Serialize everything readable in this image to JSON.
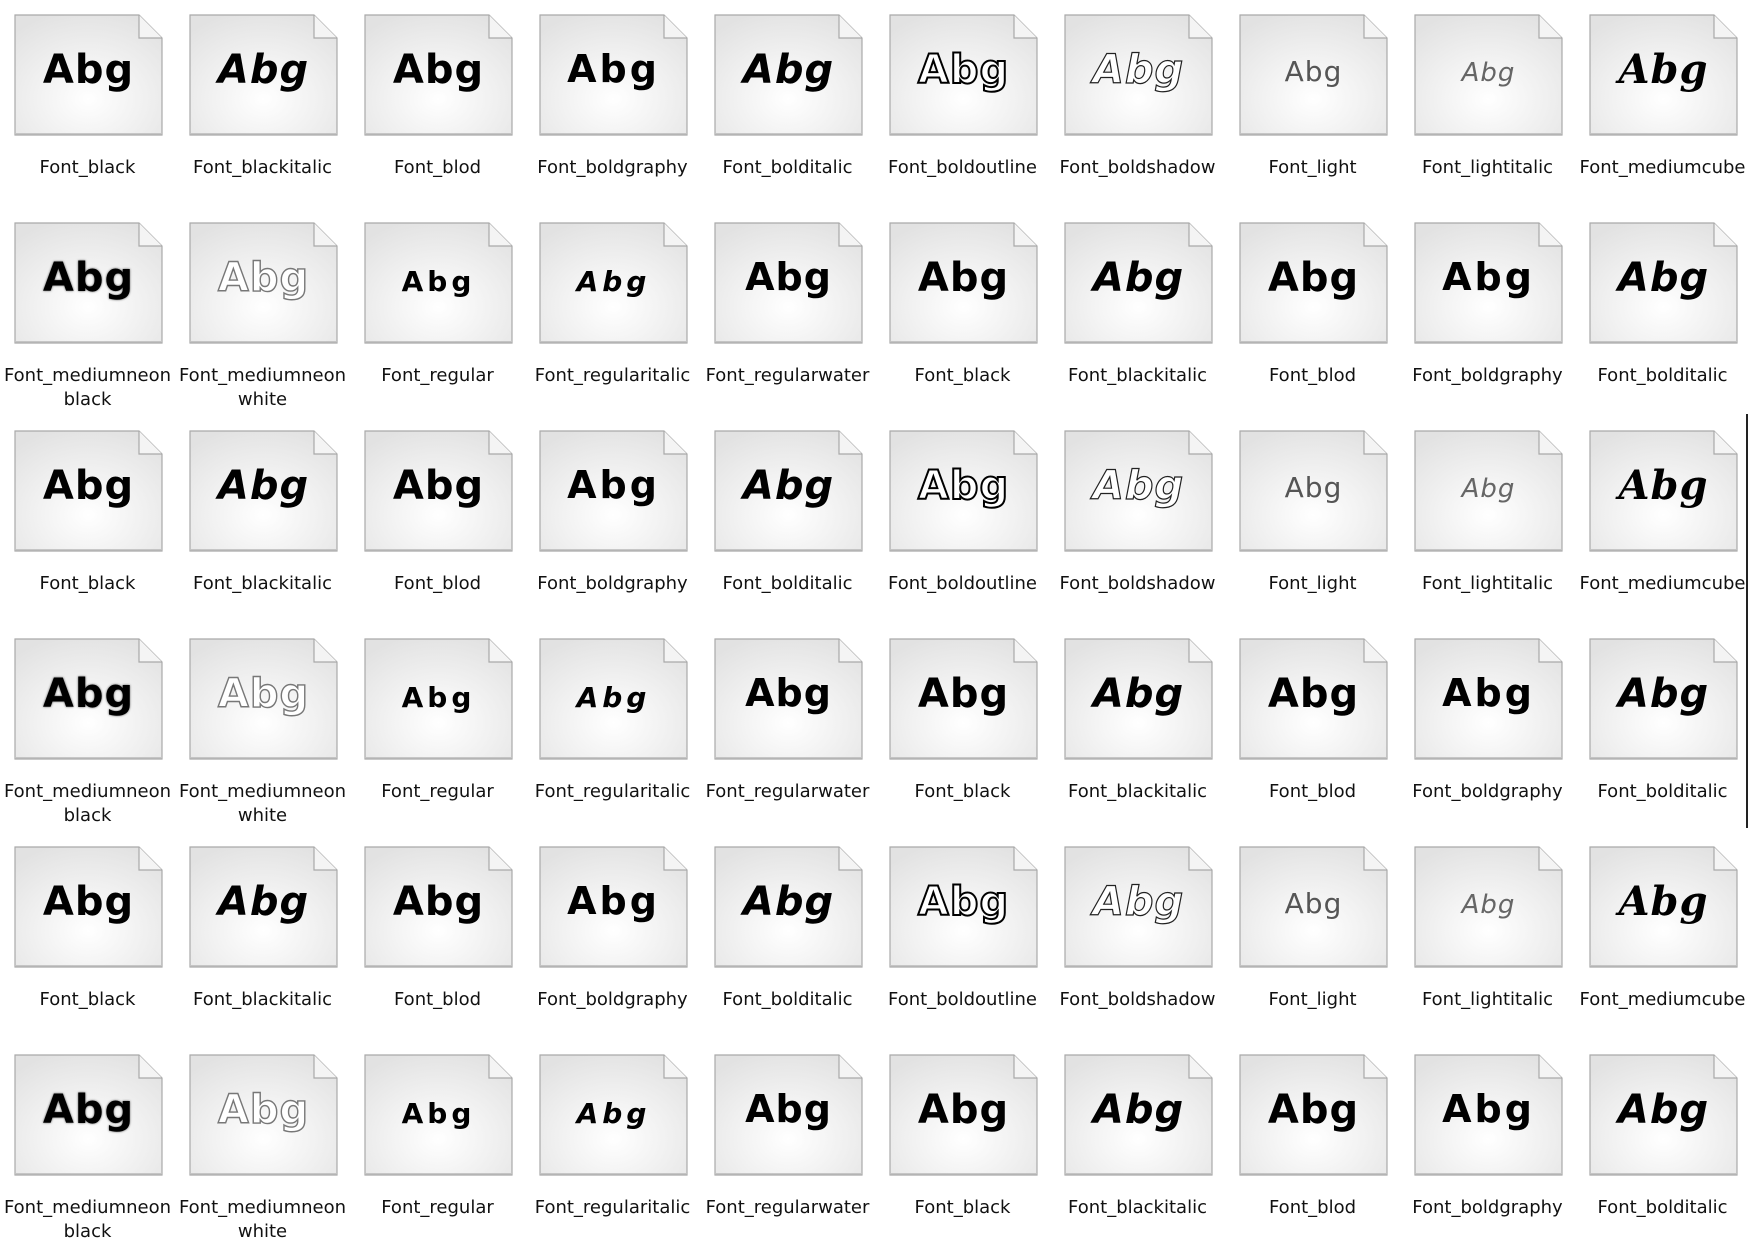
{
  "icon_preview_text": "Abg",
  "files": [
    {
      "label": "Font_black",
      "style": "black"
    },
    {
      "label": "Font_blackitalic",
      "style": "blackitalic"
    },
    {
      "label": "Font_blod",
      "style": "blod"
    },
    {
      "label": "Font_boldgraphy",
      "style": "boldgraphy"
    },
    {
      "label": "Font_bolditalic",
      "style": "bolditalic"
    },
    {
      "label": "Font_boldoutline",
      "style": "boldoutline"
    },
    {
      "label": "Font_boldshadow",
      "style": "boldshadow"
    },
    {
      "label": "Font_light",
      "style": "light"
    },
    {
      "label": "Font_lightitalic",
      "style": "lightitalic"
    },
    {
      "label": "Font_mediumcube",
      "style": "mediumcube"
    },
    {
      "label": "Font_mediumneonblack",
      "style": "mediumneonblack"
    },
    {
      "label": "Font_mediumneonwhite",
      "style": "mediumneonwhite"
    },
    {
      "label": "Font_regular",
      "style": "regular"
    },
    {
      "label": "Font_regularitalic",
      "style": "regularitalic"
    },
    {
      "label": "Font_regularwater",
      "style": "regularwater"
    },
    {
      "label": "Font_black",
      "style": "black"
    },
    {
      "label": "Font_blackitalic",
      "style": "blackitalic"
    },
    {
      "label": "Font_blod",
      "style": "blod"
    },
    {
      "label": "Font_boldgraphy",
      "style": "boldgraphy"
    },
    {
      "label": "Font_bolditalic",
      "style": "bolditalic"
    },
    {
      "label": "Font_black",
      "style": "black"
    },
    {
      "label": "Font_blackitalic",
      "style": "blackitalic"
    },
    {
      "label": "Font_blod",
      "style": "blod"
    },
    {
      "label": "Font_boldgraphy",
      "style": "boldgraphy"
    },
    {
      "label": "Font_bolditalic",
      "style": "bolditalic"
    },
    {
      "label": "Font_boldoutline",
      "style": "boldoutline"
    },
    {
      "label": "Font_boldshadow",
      "style": "boldshadow"
    },
    {
      "label": "Font_light",
      "style": "light"
    },
    {
      "label": "Font_lightitalic",
      "style": "lightitalic"
    },
    {
      "label": "Font_mediumcube",
      "style": "mediumcube"
    },
    {
      "label": "Font_mediumneonblack",
      "style": "mediumneonblack"
    },
    {
      "label": "Font_mediumneonwhite",
      "style": "mediumneonwhite"
    },
    {
      "label": "Font_regular",
      "style": "regular"
    },
    {
      "label": "Font_regularitalic",
      "style": "regularitalic"
    },
    {
      "label": "Font_regularwater",
      "style": "regularwater"
    },
    {
      "label": "Font_black",
      "style": "black"
    },
    {
      "label": "Font_blackitalic",
      "style": "blackitalic"
    },
    {
      "label": "Font_blod",
      "style": "blod"
    },
    {
      "label": "Font_boldgraphy",
      "style": "boldgraphy"
    },
    {
      "label": "Font_bolditalic",
      "style": "bolditalic"
    },
    {
      "label": "Font_black",
      "style": "black"
    },
    {
      "label": "Font_blackitalic",
      "style": "blackitalic"
    },
    {
      "label": "Font_blod",
      "style": "blod"
    },
    {
      "label": "Font_boldgraphy",
      "style": "boldgraphy"
    },
    {
      "label": "Font_bolditalic",
      "style": "bolditalic"
    },
    {
      "label": "Font_boldoutline",
      "style": "boldoutline"
    },
    {
      "label": "Font_boldshadow",
      "style": "boldshadow"
    },
    {
      "label": "Font_light",
      "style": "light"
    },
    {
      "label": "Font_lightitalic",
      "style": "lightitalic"
    },
    {
      "label": "Font_mediumcube",
      "style": "mediumcube"
    },
    {
      "label": "Font_mediumneonblack",
      "style": "mediumneonblack"
    },
    {
      "label": "Font_mediumneonwhite",
      "style": "mediumneonwhite"
    },
    {
      "label": "Font_regular",
      "style": "regular"
    },
    {
      "label": "Font_regularitalic",
      "style": "regularitalic"
    },
    {
      "label": "Font_regularwater",
      "style": "regularwater"
    },
    {
      "label": "Font_black",
      "style": "black"
    },
    {
      "label": "Font_blackitalic",
      "style": "blackitalic"
    },
    {
      "label": "Font_blod",
      "style": "blod"
    },
    {
      "label": "Font_boldgraphy",
      "style": "boldgraphy"
    },
    {
      "label": "Font_bolditalic",
      "style": "bolditalic"
    }
  ]
}
